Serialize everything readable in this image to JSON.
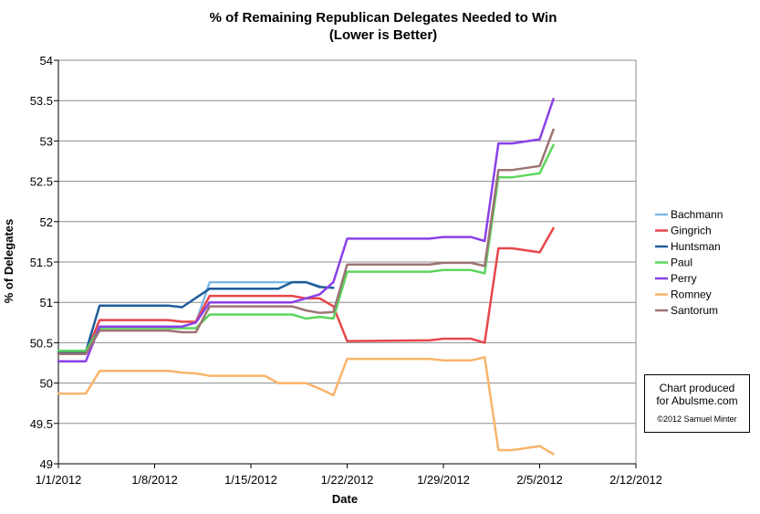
{
  "chart_data": {
    "type": "line",
    "title": "% of Remaining Republican Delegates Needed to Win",
    "subtitle": "(Lower is Better)",
    "xlabel": "Date",
    "ylabel": "% of Delegates",
    "xlim": [
      "1/1/2012",
      "2/12/2012"
    ],
    "ylim": [
      49,
      54
    ],
    "x_ticks": [
      "1/1/2012",
      "1/8/2012",
      "1/15/2012",
      "1/22/2012",
      "1/29/2012",
      "2/5/2012",
      "2/12/2012"
    ],
    "y_ticks": [
      "49",
      "49.5",
      "50",
      "50.5",
      "51",
      "51.5",
      "52",
      "52.5",
      "53",
      "53.5",
      "54"
    ],
    "grid": "horizontal",
    "legend_position": "right",
    "series": [
      {
        "name": "Bachmann",
        "color": "#7fb9e6",
        "points": [
          [
            "1/1/2012",
            50.4
          ],
          [
            "1/3/2012",
            50.4
          ],
          [
            "1/4/2012",
            50.7
          ],
          [
            "1/10/2012",
            50.7
          ],
          [
            "1/11/2012",
            50.75
          ],
          [
            "1/12/2012",
            51.25
          ],
          [
            "1/19/2012",
            51.25
          ],
          [
            "1/20/2012",
            51.2
          ]
        ]
      },
      {
        "name": "Gingrich",
        "color": "#e8464a",
        "points": [
          [
            "1/1/2012",
            50.37
          ],
          [
            "1/3/2012",
            50.37
          ],
          [
            "1/4/2012",
            50.78
          ],
          [
            "1/9/2012",
            50.78
          ],
          [
            "1/10/2012",
            50.76
          ],
          [
            "1/11/2012",
            50.76
          ],
          [
            "1/12/2012",
            51.08
          ],
          [
            "1/18/2012",
            51.08
          ],
          [
            "1/19/2012",
            51.05
          ],
          [
            "1/20/2012",
            51.05
          ],
          [
            "1/21/2012",
            50.95
          ],
          [
            "1/22/2012",
            50.52
          ],
          [
            "1/28/2012",
            50.53
          ],
          [
            "1/29/2012",
            50.55
          ],
          [
            "1/31/2012",
            50.55
          ],
          [
            "2/1/2012",
            50.5
          ],
          [
            "2/2/2012",
            51.67
          ],
          [
            "2/3/2012",
            51.67
          ],
          [
            "2/5/2012",
            51.62
          ],
          [
            "2/6/2012",
            51.92
          ]
        ]
      },
      {
        "name": "Huntsman",
        "color": "#1f5c99",
        "points": [
          [
            "1/1/2012",
            50.39
          ],
          [
            "1/3/2012",
            50.39
          ],
          [
            "1/4/2012",
            50.96
          ],
          [
            "1/9/2012",
            50.96
          ],
          [
            "1/10/2012",
            50.94
          ],
          [
            "1/12/2012",
            51.17
          ],
          [
            "1/17/2012",
            51.17
          ],
          [
            "1/18/2012",
            51.25
          ],
          [
            "1/19/2012",
            51.25
          ],
          [
            "1/20/2012",
            51.19
          ],
          [
            "1/21/2012",
            51.18
          ]
        ]
      },
      {
        "name": "Paul",
        "color": "#5dd55d",
        "points": [
          [
            "1/1/2012",
            50.4
          ],
          [
            "1/3/2012",
            50.4
          ],
          [
            "1/4/2012",
            50.68
          ],
          [
            "1/10/2012",
            50.68
          ],
          [
            "1/11/2012",
            50.68
          ],
          [
            "1/12/2012",
            50.85
          ],
          [
            "1/18/2012",
            50.85
          ],
          [
            "1/19/2012",
            50.8
          ],
          [
            "1/20/2012",
            50.82
          ],
          [
            "1/21/2012",
            50.8
          ],
          [
            "1/22/2012",
            51.38
          ],
          [
            "1/28/2012",
            51.38
          ],
          [
            "1/29/2012",
            51.4
          ],
          [
            "1/31/2012",
            51.4
          ],
          [
            "2/1/2012",
            51.36
          ],
          [
            "2/2/2012",
            52.55
          ],
          [
            "2/3/2012",
            52.55
          ],
          [
            "2/5/2012",
            52.6
          ],
          [
            "2/6/2012",
            52.95
          ]
        ]
      },
      {
        "name": "Perry",
        "color": "#8a40e8",
        "points": [
          [
            "1/1/2012",
            50.27
          ],
          [
            "1/3/2012",
            50.27
          ],
          [
            "1/4/2012",
            50.7
          ],
          [
            "1/10/2012",
            50.7
          ],
          [
            "1/11/2012",
            50.75
          ],
          [
            "1/12/2012",
            51.0
          ],
          [
            "1/18/2012",
            51.0
          ],
          [
            "1/19/2012",
            51.05
          ],
          [
            "1/20/2012",
            51.1
          ],
          [
            "1/21/2012",
            51.25
          ],
          [
            "1/22/2012",
            51.79
          ],
          [
            "1/28/2012",
            51.79
          ],
          [
            "1/29/2012",
            51.81
          ],
          [
            "1/31/2012",
            51.81
          ],
          [
            "2/1/2012",
            51.76
          ],
          [
            "2/2/2012",
            52.97
          ],
          [
            "2/3/2012",
            52.97
          ],
          [
            "2/5/2012",
            53.02
          ],
          [
            "2/6/2012",
            53.52
          ]
        ]
      },
      {
        "name": "Romney",
        "color": "#f9b46a",
        "points": [
          [
            "1/1/2012",
            49.87
          ],
          [
            "1/3/2012",
            49.87
          ],
          [
            "1/4/2012",
            50.15
          ],
          [
            "1/9/2012",
            50.15
          ],
          [
            "1/10/2012",
            50.13
          ],
          [
            "1/11/2012",
            50.12
          ],
          [
            "1/12/2012",
            50.09
          ],
          [
            "1/16/2012",
            50.09
          ],
          [
            "1/17/2012",
            50.0
          ],
          [
            "1/18/2012",
            50.0
          ],
          [
            "1/19/2012",
            50.0
          ],
          [
            "1/20/2012",
            49.93
          ],
          [
            "1/21/2012",
            49.85
          ],
          [
            "1/22/2012",
            50.3
          ],
          [
            "1/28/2012",
            50.3
          ],
          [
            "1/29/2012",
            50.28
          ],
          [
            "1/31/2012",
            50.28
          ],
          [
            "2/1/2012",
            50.32
          ],
          [
            "2/2/2012",
            49.17
          ],
          [
            "2/3/2012",
            49.17
          ],
          [
            "2/5/2012",
            49.22
          ],
          [
            "2/6/2012",
            49.12
          ]
        ]
      },
      {
        "name": "Santorum",
        "color": "#9c7474",
        "points": [
          [
            "1/1/2012",
            50.36
          ],
          [
            "1/3/2012",
            50.36
          ],
          [
            "1/4/2012",
            50.65
          ],
          [
            "1/9/2012",
            50.65
          ],
          [
            "1/10/2012",
            50.63
          ],
          [
            "1/11/2012",
            50.63
          ],
          [
            "1/12/2012",
            50.95
          ],
          [
            "1/18/2012",
            50.95
          ],
          [
            "1/19/2012",
            50.9
          ],
          [
            "1/20/2012",
            50.87
          ],
          [
            "1/21/2012",
            50.88
          ],
          [
            "1/22/2012",
            51.47
          ],
          [
            "1/28/2012",
            51.47
          ],
          [
            "1/29/2012",
            51.49
          ],
          [
            "1/31/2012",
            51.49
          ],
          [
            "2/1/2012",
            51.45
          ],
          [
            "2/2/2012",
            52.64
          ],
          [
            "2/3/2012",
            52.64
          ],
          [
            "2/5/2012",
            52.69
          ],
          [
            "2/6/2012",
            53.14
          ]
        ]
      }
    ]
  },
  "credit": {
    "line1": "Chart produced",
    "line2": "for Abulsme.com",
    "copyright": "©2012 Samuel Minter"
  }
}
